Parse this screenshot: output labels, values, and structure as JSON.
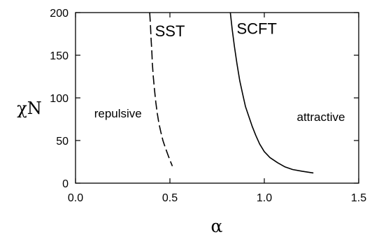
{
  "chart_data": {
    "type": "line",
    "title": "",
    "xlabel": "α",
    "ylabel": "χN",
    "xlim": [
      0.0,
      1.5
    ],
    "ylim": [
      0,
      200
    ],
    "x_ticks": [
      0.0,
      0.5,
      1.0,
      1.5
    ],
    "x_tick_labels": [
      "0.0",
      "0.5",
      "1.0",
      "1.5"
    ],
    "y_ticks": [
      0,
      50,
      100,
      150,
      200
    ],
    "y_tick_labels": [
      "0",
      "50",
      "100",
      "150",
      "200"
    ],
    "grid": false,
    "legend": "none",
    "series": [
      {
        "name": "SST",
        "style": "dashed",
        "color": "#000000",
        "points": [
          [
            0.393,
            200
          ],
          [
            0.397,
            185
          ],
          [
            0.4,
            170
          ],
          [
            0.404,
            155
          ],
          [
            0.407,
            140
          ],
          [
            0.412,
            125
          ],
          [
            0.418,
            110
          ],
          [
            0.425,
            95
          ],
          [
            0.433,
            82
          ],
          [
            0.442,
            70
          ],
          [
            0.452,
            60
          ],
          [
            0.463,
            50
          ],
          [
            0.475,
            42
          ],
          [
            0.488,
            34
          ],
          [
            0.5,
            27
          ],
          [
            0.513,
            20
          ]
        ]
      },
      {
        "name": "SCFT",
        "style": "solid",
        "color": "#000000",
        "points": [
          [
            0.82,
            200
          ],
          [
            0.83,
            180
          ],
          [
            0.842,
            160
          ],
          [
            0.855,
            140
          ],
          [
            0.87,
            120
          ],
          [
            0.885,
            105
          ],
          [
            0.9,
            90
          ],
          [
            0.918,
            78
          ],
          [
            0.935,
            67
          ],
          [
            0.955,
            56
          ],
          [
            0.975,
            46
          ],
          [
            1.0,
            37
          ],
          [
            1.03,
            30
          ],
          [
            1.07,
            24
          ],
          [
            1.11,
            19
          ],
          [
            1.15,
            16
          ],
          [
            1.2,
            14
          ],
          [
            1.26,
            12
          ]
        ]
      }
    ],
    "annotations": [
      {
        "text": "SST",
        "x": 0.5,
        "y": 172
      },
      {
        "text": "SCFT",
        "x": 0.96,
        "y": 175
      },
      {
        "text": "repulsive",
        "x": 0.225,
        "y": 77
      },
      {
        "text": "attractive",
        "x": 1.3,
        "y": 73
      }
    ]
  }
}
